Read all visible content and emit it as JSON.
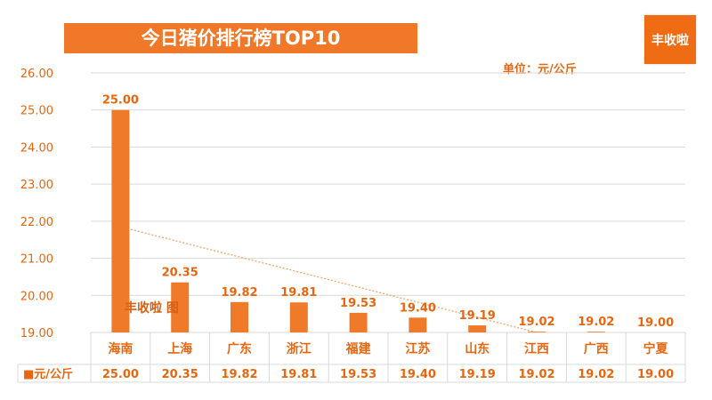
{
  "title": "今日猪价排行榜TOP10",
  "logo_text": "丰收啦",
  "unit_label": "单位：元/公斤",
  "watermark": "丰收啦 图",
  "colors": {
    "bar": "#ef7a2a",
    "text": "#e8660f",
    "grid": "#d9d9d9",
    "trend": "#f2a46c"
  },
  "chart_data": {
    "type": "bar",
    "title": "今日猪价排行榜TOP10",
    "categories": [
      "海南",
      "上海",
      "广东",
      "浙江",
      "福建",
      "江苏",
      "山东",
      "江西",
      "广西",
      "宁夏"
    ],
    "series": [
      {
        "name": "■元/公斤",
        "values": [
          25.0,
          20.35,
          19.82,
          19.81,
          19.53,
          19.4,
          19.19,
          19.02,
          19.02,
          19.0
        ]
      }
    ],
    "data_labels": [
      "25.00",
      "20.35",
      "19.82",
      "19.81",
      "19.53",
      "19.40",
      "19.19",
      "19.02",
      "19.02",
      "19.00"
    ],
    "y_ticks": [
      "19.00",
      "20.00",
      "21.00",
      "22.00",
      "23.00",
      "24.00",
      "25.00",
      "26.00"
    ],
    "ylim": [
      19,
      26
    ],
    "grid": true,
    "trendline": {
      "type": "linear",
      "from": 21.85,
      "to": 19.0
    },
    "data_table": true
  }
}
